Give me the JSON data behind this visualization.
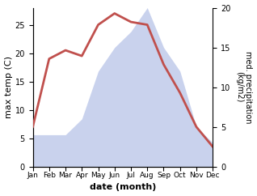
{
  "months": [
    "Jan",
    "Feb",
    "Mar",
    "Apr",
    "May",
    "Jun",
    "Jul",
    "Aug",
    "Sep",
    "Oct",
    "Nov",
    "Dec"
  ],
  "month_indices": [
    1,
    2,
    3,
    4,
    5,
    6,
    7,
    8,
    9,
    10,
    11,
    12
  ],
  "temperature": [
    7,
    19,
    20.5,
    19.5,
    25,
    27,
    25.5,
    25,
    18,
    13,
    7,
    3.5
  ],
  "precipitation": [
    4,
    4,
    4,
    6,
    12,
    15,
    17,
    20,
    15,
    12,
    5,
    3
  ],
  "temp_color": "#c0504d",
  "precip_color_fill": "#b8c4e8",
  "ylabel_left": "max temp (C)",
  "ylabel_right": "med. precipitation\n(kg/m2)",
  "xlabel": "date (month)",
  "ylim_left": [
    0,
    28
  ],
  "ylim_right": [
    0,
    20
  ],
  "yticks_left": [
    0,
    5,
    10,
    15,
    20,
    25
  ],
  "yticks_right": [
    0,
    5,
    10,
    15,
    20
  ],
  "background_color": "#ffffff",
  "temp_linewidth": 2.0,
  "figsize": [
    3.18,
    2.42
  ],
  "dpi": 100
}
